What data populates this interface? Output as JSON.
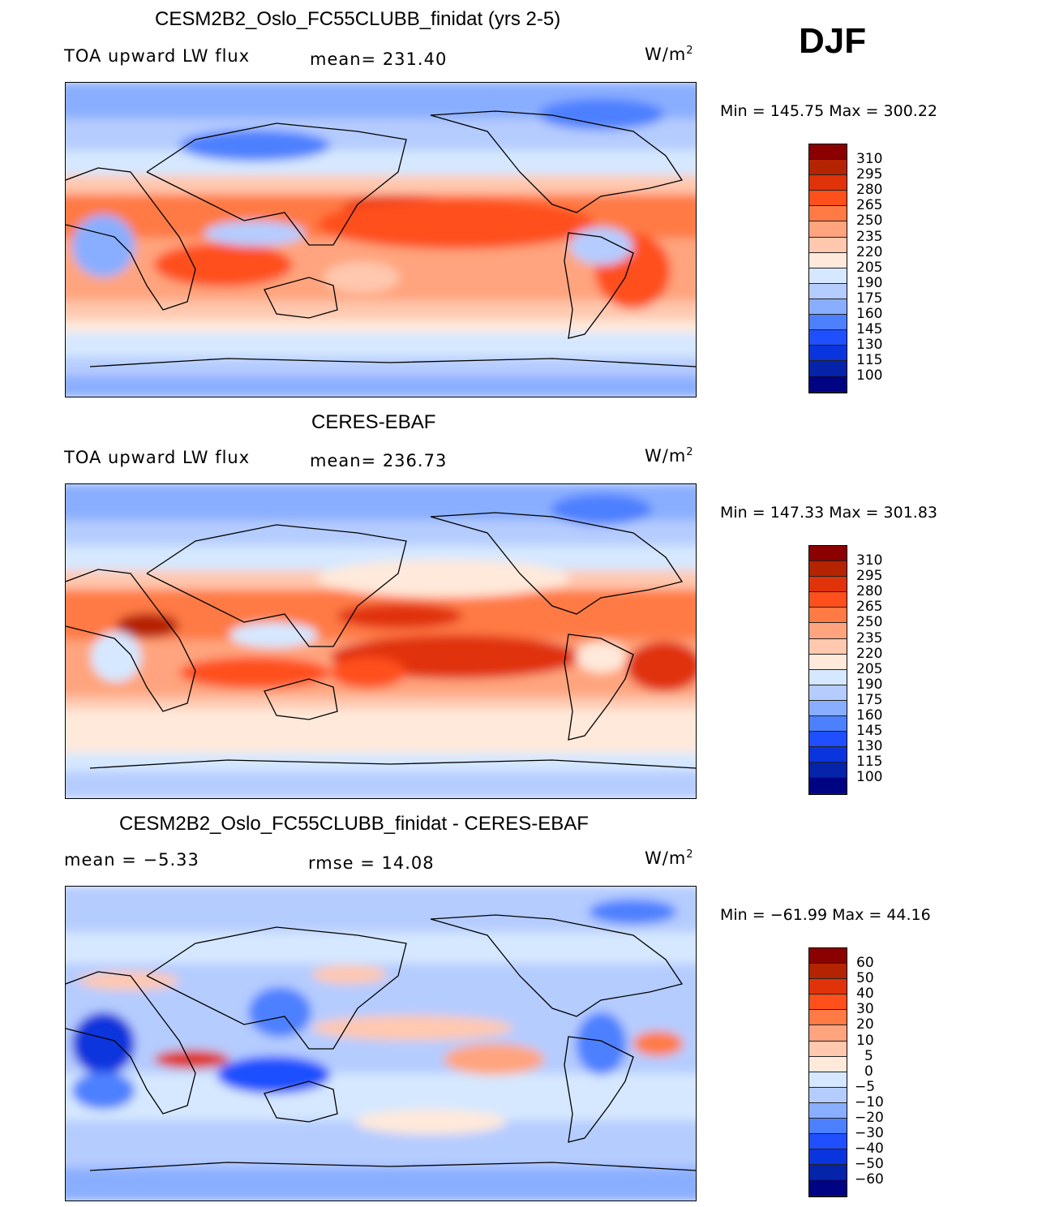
{
  "season": "DJF",
  "chart_data": [
    {
      "type": "heatmap",
      "title": "CESM2B2_Oslo_FC55CLUBB_finidat (yrs 2-5)",
      "left_label": "TOA upward LW flux",
      "center_label": "mean= 231.40",
      "units": "W/m",
      "units_sup": "2",
      "stats": "Min  =  145.75  Max  =  300.22",
      "min": 145.75,
      "max": 300.22,
      "mean": 231.4,
      "levels": [
        "310",
        "295",
        "280",
        "265",
        "250",
        "235",
        "220",
        "205",
        "190",
        "175",
        "160",
        "145",
        "130",
        "115",
        "100"
      ]
    },
    {
      "type": "heatmap",
      "title": "CERES-EBAF",
      "left_label": "TOA upward LW flux",
      "center_label": "mean= 236.73",
      "units": "W/m",
      "units_sup": "2",
      "stats": "Min  =  147.33  Max  =  301.83",
      "min": 147.33,
      "max": 301.83,
      "mean": 236.73,
      "levels": [
        "310",
        "295",
        "280",
        "265",
        "250",
        "235",
        "220",
        "205",
        "190",
        "175",
        "160",
        "145",
        "130",
        "115",
        "100"
      ]
    },
    {
      "type": "heatmap",
      "title": "CESM2B2_Oslo_FC55CLUBB_finidat - CERES-EBAF",
      "left_label": "mean  =    −5.33",
      "center_label": "rmse  =    14.08",
      "units": "W/m",
      "units_sup": "2",
      "stats": "Min  =  −61.99  Max  =    44.16",
      "min": -61.99,
      "max": 44.16,
      "mean": -5.33,
      "rmse": 14.08,
      "levels": [
        "60",
        "50",
        "40",
        "30",
        "20",
        "10",
        "5",
        "0",
        "−5",
        "−10",
        "−20",
        "−30",
        "−40",
        "−50",
        "−60"
      ]
    }
  ],
  "colors": [
    "#8b0000",
    "#b52400",
    "#e0330a",
    "#ff4f1a",
    "#ff7a45",
    "#ffa47e",
    "#ffc8af",
    "#ffe9da",
    "#d6e8ff",
    "#b5ccff",
    "#8aaeff",
    "#4d80ff",
    "#1f4fff",
    "#0a34dd",
    "#0524aa",
    "#000482"
  ]
}
